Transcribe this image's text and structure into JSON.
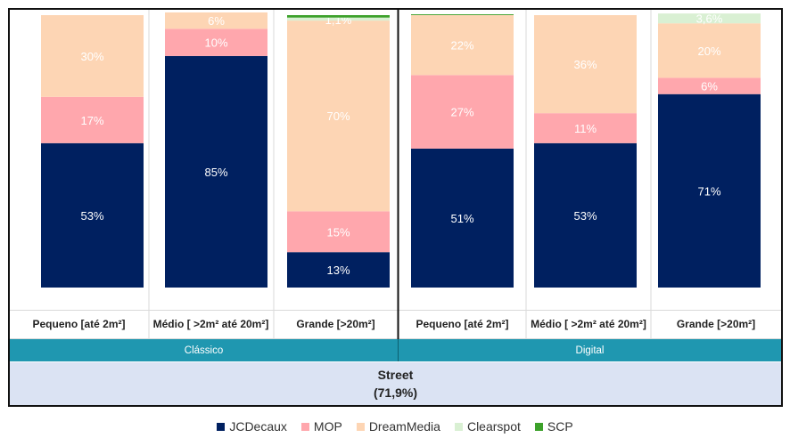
{
  "chart_data": {
    "type": "bar",
    "stacked": true,
    "normalized": true,
    "categories": [
      "Pequeno [até 2m²]",
      "Médio [ >2m² até 20m²]",
      "Grande [>20m²]",
      "Pequeno [até 2m²]",
      "Médio [ >2m² até 20m²]",
      "Grande [>20m²]"
    ],
    "groups": [
      {
        "label": "Clássico",
        "span": [
          0,
          2
        ]
      },
      {
        "label": "Digital",
        "span": [
          3,
          5
        ]
      }
    ],
    "super_group": {
      "title": "Street",
      "subtitle": "(71,9%)"
    },
    "series": [
      {
        "name": "JCDecaux",
        "color": "#002060",
        "values": [
          53,
          85,
          13,
          51,
          53,
          71
        ],
        "labels": [
          "53%",
          "85%",
          "13%",
          "51%",
          "53%",
          "71%"
        ]
      },
      {
        "name": "MOP",
        "color": "#ffa7ad",
        "values": [
          17,
          10,
          15,
          27,
          11,
          6
        ],
        "labels": [
          "17%",
          "10%",
          "15%",
          "27%",
          "11%",
          "6%"
        ]
      },
      {
        "name": "DreamMedia",
        "color": "#fdd5b4",
        "values": [
          30,
          6,
          70,
          22,
          36,
          20
        ],
        "labels": [
          "30%",
          "6%",
          "70%",
          "22%",
          "36%",
          "20%"
        ]
      },
      {
        "name": "Clearspot",
        "color": "#d9f0d3",
        "values": [
          0,
          0,
          1.1,
          0,
          0,
          3.6
        ],
        "labels": [
          "",
          "",
          "1,1%",
          "",
          "",
          "3,6%"
        ]
      },
      {
        "name": "SCP",
        "color": "#3ca12a",
        "values": [
          0,
          0,
          0.9,
          0.3,
          0,
          0
        ],
        "labels": [
          "",
          "",
          "",
          "",
          "",
          ""
        ]
      }
    ],
    "ylim": [
      0,
      100
    ],
    "legend": "bottom-center"
  }
}
